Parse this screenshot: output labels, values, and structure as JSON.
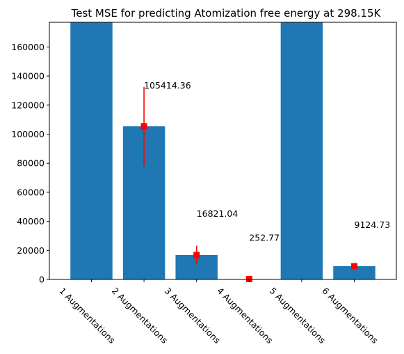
{
  "chart_data": {
    "type": "bar",
    "title": "Test MSE for predicting Atomization free energy at 298.15K",
    "xlabel": "",
    "ylabel": "",
    "categories": [
      "1 Augmentations",
      "2 Augmentations",
      "3 Augmentations",
      "4 Augmentations",
      "5 Augmentations",
      "6 Augmentations"
    ],
    "values": [
      178000,
      105414.36,
      16821.04,
      252.77,
      178000,
      9124.73
    ],
    "error_low": [
      null,
      78000,
      10500,
      0,
      null,
      7800
    ],
    "error_high": [
      null,
      132500,
      23200,
      600,
      null,
      11300
    ],
    "value_labels": [
      "",
      "105414.36",
      "16821.04",
      "252.77",
      "",
      "9124.73"
    ],
    "ylim": [
      0,
      177000
    ],
    "yticks": [
      0,
      20000,
      40000,
      60000,
      80000,
      100000,
      120000,
      140000,
      160000
    ],
    "grid": false,
    "legend": "none",
    "bar_color": "#1f77b4",
    "error_color": "#ff0000"
  }
}
